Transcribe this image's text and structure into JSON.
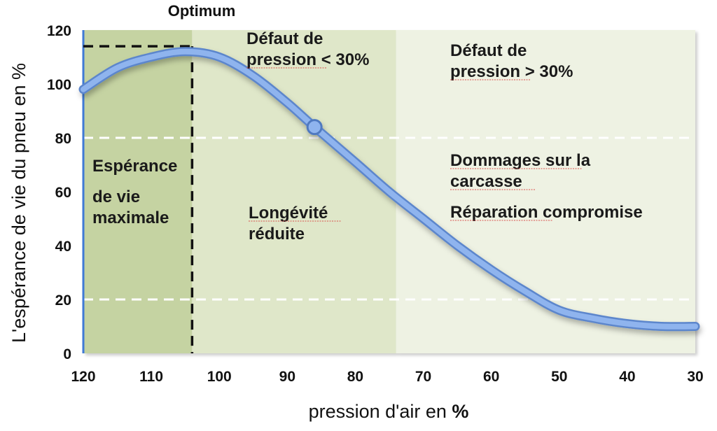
{
  "chart_data": {
    "type": "line",
    "title": "Optimum",
    "xlabel": "pression d'air en %",
    "ylabel": "L'espérance de vie du pneu en %",
    "x_reversed": true,
    "xlim": [
      30,
      120
    ],
    "ylim": [
      0,
      120
    ],
    "x_ticks": [
      "120",
      "110",
      "100",
      "90",
      "80",
      "70",
      "60",
      "50",
      "40",
      "30"
    ],
    "y_ticks": [
      "0",
      "20",
      "40",
      "60",
      "80",
      "100",
      "120"
    ],
    "series": [
      {
        "color": "#6f9be0",
        "x": [
          120,
          115,
          110,
          105,
          100,
          95,
          90,
          86,
          80,
          75,
          70,
          65,
          60,
          55,
          50,
          45,
          40,
          35,
          30
        ],
        "y": [
          98,
          106,
          110,
          112,
          110,
          103,
          93,
          84,
          71,
          60,
          50,
          40,
          31,
          23,
          16,
          13,
          11,
          10,
          10
        ]
      }
    ],
    "gridlines_y": [
      20,
      80
    ],
    "optimum": {
      "x": 104,
      "y": 114
    },
    "marker": {
      "x": 86,
      "y": 84
    },
    "regions": [
      {
        "from": 120,
        "to": 104,
        "color": "#c5d3a2"
      },
      {
        "from": 104,
        "to": 74,
        "color": "#dfe7c9"
      },
      {
        "from": 74,
        "to": 30,
        "color": "#eef2e3"
      }
    ],
    "annotations": {
      "zone1_line1": "Espérance",
      "zone1_line2": "de vie",
      "zone1_line3": "maximale",
      "zone2_top_line1": "Défaut de",
      "zone2_top_line2": "pression < 30%",
      "zone2_mid_line1": "Longévité",
      "zone2_mid_line2": "réduite",
      "zone3_top_line1": "Défaut de",
      "zone3_top_line2": "pression > 30%",
      "zone3_mid_line1": "Dommages sur la",
      "zone3_mid_line2": "carcasse",
      "zone3_mid_line3": "Réparation compromise"
    }
  }
}
